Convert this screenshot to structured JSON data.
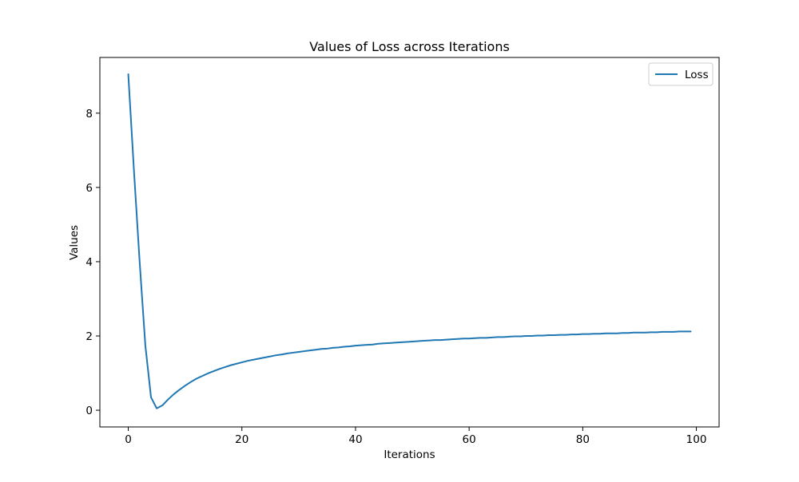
{
  "chart_data": {
    "type": "line",
    "title": "Values of Loss across Iterations",
    "xlabel": "Iterations",
    "ylabel": "Values",
    "xlim": [
      -5,
      104
    ],
    "ylim": [
      -0.45,
      9.5
    ],
    "xticks": [
      0,
      20,
      40,
      60,
      80,
      100
    ],
    "yticks": [
      0,
      2,
      4,
      6,
      8
    ],
    "xtick_labels": [
      "0",
      "20",
      "40",
      "60",
      "80",
      "100"
    ],
    "ytick_labels": [
      "0",
      "2",
      "4",
      "6",
      "8"
    ],
    "grid": false,
    "legend_position": "top-right",
    "series": [
      {
        "name": "Loss",
        "color": "#1f77b4",
        "x": [
          0,
          1,
          2,
          3,
          4,
          5,
          6,
          7,
          8,
          9,
          10,
          11,
          12,
          13,
          14,
          15,
          16,
          17,
          18,
          19,
          20,
          21,
          22,
          23,
          24,
          25,
          26,
          27,
          28,
          29,
          30,
          31,
          32,
          33,
          34,
          35,
          36,
          37,
          38,
          39,
          40,
          41,
          42,
          43,
          44,
          45,
          46,
          47,
          48,
          49,
          50,
          51,
          52,
          53,
          54,
          55,
          56,
          57,
          58,
          59,
          60,
          61,
          62,
          63,
          64,
          65,
          66,
          67,
          68,
          69,
          70,
          71,
          72,
          73,
          74,
          75,
          76,
          77,
          78,
          79,
          80,
          81,
          82,
          83,
          84,
          85,
          86,
          87,
          88,
          89,
          90,
          91,
          92,
          93,
          94,
          95,
          96,
          97,
          98,
          99
        ],
        "values": [
          9.05,
          6.45,
          4.0,
          1.75,
          0.35,
          0.05,
          0.13,
          0.29,
          0.43,
          0.55,
          0.66,
          0.76,
          0.85,
          0.92,
          0.99,
          1.05,
          1.11,
          1.16,
          1.21,
          1.25,
          1.29,
          1.33,
          1.36,
          1.39,
          1.42,
          1.45,
          1.48,
          1.5,
          1.53,
          1.55,
          1.57,
          1.59,
          1.61,
          1.63,
          1.65,
          1.66,
          1.68,
          1.69,
          1.71,
          1.72,
          1.74,
          1.75,
          1.76,
          1.77,
          1.79,
          1.8,
          1.81,
          1.82,
          1.83,
          1.84,
          1.85,
          1.86,
          1.87,
          1.88,
          1.89,
          1.89,
          1.9,
          1.91,
          1.92,
          1.93,
          1.93,
          1.94,
          1.95,
          1.95,
          1.96,
          1.97,
          1.97,
          1.98,
          1.99,
          1.99,
          2.0,
          2.0,
          2.01,
          2.01,
          2.02,
          2.02,
          2.03,
          2.03,
          2.04,
          2.04,
          2.05,
          2.05,
          2.06,
          2.06,
          2.07,
          2.07,
          2.07,
          2.08,
          2.08,
          2.09,
          2.09,
          2.09,
          2.1,
          2.1,
          2.11,
          2.11,
          2.11,
          2.12,
          2.12,
          2.12
        ]
      }
    ]
  }
}
